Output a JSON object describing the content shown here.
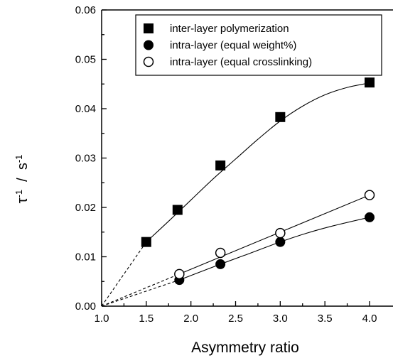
{
  "chart_data": {
    "type": "scatter",
    "title": "",
    "xlabel": "Asymmetry ratio",
    "ylabel": {
      "parts": [
        {
          "text": "τ",
          "sup": false
        },
        {
          "text": "-1",
          "sup": true
        },
        {
          "text": "  /  ",
          "sup": false
        },
        {
          "text": "s",
          "sup": false
        },
        {
          "text": "-1",
          "sup": true
        }
      ]
    },
    "xlim": [
      1.0,
      4.2
    ],
    "ylim": [
      0.0,
      0.06
    ],
    "xticks": [
      1.0,
      1.5,
      2.0,
      2.5,
      3.0,
      3.5,
      4.0
    ],
    "xtick_labels": [
      "1.0",
      "1.5",
      "2.0",
      "2.5",
      "3.0",
      "3.5",
      "4.0"
    ],
    "yticks": [
      0.0,
      0.01,
      0.02,
      0.03,
      0.04,
      0.05,
      0.06
    ],
    "ytick_labels": [
      "0.00",
      "0.01",
      "0.02",
      "0.03",
      "0.04",
      "0.05",
      "0.06"
    ],
    "grid": false,
    "legend_position": "top-right",
    "series": [
      {
        "name": "inter-layer polymerization",
        "marker": "filled-square",
        "color": "#000000",
        "x": [
          1.5,
          1.85,
          2.33,
          3.0,
          4.0
        ],
        "y": [
          0.013,
          0.0195,
          0.0285,
          0.0383,
          0.0453
        ],
        "fit_curve": [
          [
            1.5,
            0.013
          ],
          [
            1.75,
            0.0172
          ],
          [
            2.0,
            0.0215
          ],
          [
            2.25,
            0.0258
          ],
          [
            2.5,
            0.0298
          ],
          [
            2.75,
            0.0338
          ],
          [
            3.0,
            0.0375
          ],
          [
            3.25,
            0.0405
          ],
          [
            3.5,
            0.0428
          ],
          [
            3.75,
            0.0443
          ],
          [
            4.0,
            0.0452
          ]
        ],
        "dashed_extrapolation": [
          [
            1.0,
            0.0
          ],
          [
            1.5,
            0.013
          ]
        ]
      },
      {
        "name": "intra-layer (equal weight%)",
        "marker": "filled-circle",
        "color": "#000000",
        "x": [
          1.87,
          2.33,
          3.0,
          4.0
        ],
        "y": [
          0.0053,
          0.0085,
          0.013,
          0.018
        ],
        "fit_curve": [
          [
            1.87,
            0.0053
          ],
          [
            2.1,
            0.0069
          ],
          [
            2.33,
            0.0085
          ],
          [
            2.6,
            0.0103
          ],
          [
            3.0,
            0.013
          ],
          [
            3.3,
            0.0148
          ],
          [
            3.6,
            0.0163
          ],
          [
            4.0,
            0.018
          ]
        ],
        "dashed_extrapolation": [
          [
            1.0,
            0.0
          ],
          [
            1.87,
            0.0053
          ]
        ]
      },
      {
        "name": "intra-layer (equal crosslinking)",
        "marker": "open-circle",
        "color": "#000000",
        "x": [
          1.87,
          2.33,
          3.0,
          4.0
        ],
        "y": [
          0.0065,
          0.0108,
          0.0148,
          0.0225
        ],
        "fit_curve": [
          [
            1.87,
            0.0065
          ],
          [
            4.0,
            0.0225
          ]
        ],
        "dashed_extrapolation": [
          [
            1.0,
            0.0
          ],
          [
            1.87,
            0.0065
          ]
        ]
      }
    ]
  }
}
